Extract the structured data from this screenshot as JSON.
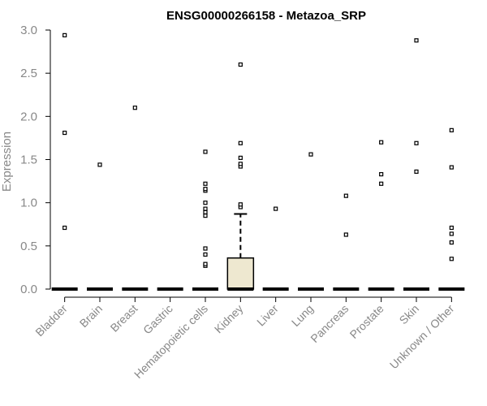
{
  "chart_data": {
    "type": "box",
    "title": "ENSG00000266158 - Metazoa_SRP",
    "xlabel": "",
    "ylabel": "Expression",
    "ylim": [
      0,
      3.0
    ],
    "yticks": [
      "0.0",
      "0.5",
      "1.0",
      "1.5",
      "2.0",
      "2.5",
      "3.0"
    ],
    "box_fill": "#EEE8D0",
    "categories": [
      "Bladder",
      "Brain",
      "Breast",
      "Gastric",
      "Hematopoietic cells",
      "Kidney",
      "Liver",
      "Lung",
      "Pancreas",
      "Prostate",
      "Skin",
      "Unknown / Other"
    ],
    "boxes": [
      {
        "q1": 0,
        "median": 0,
        "q3": 0,
        "whisker_low": 0,
        "whisker_high": 0,
        "outliers": [
          0.71,
          1.81,
          2.94
        ]
      },
      {
        "q1": 0,
        "median": 0,
        "q3": 0,
        "whisker_low": 0,
        "whisker_high": 0,
        "outliers": [
          1.44
        ]
      },
      {
        "q1": 0,
        "median": 0,
        "q3": 0,
        "whisker_low": 0,
        "whisker_high": 0,
        "outliers": [
          2.1
        ]
      },
      {
        "q1": 0,
        "median": 0,
        "q3": 0,
        "whisker_low": 0,
        "whisker_high": 0,
        "outliers": []
      },
      {
        "q1": 0,
        "median": 0,
        "q3": 0,
        "whisker_low": 0,
        "whisker_high": 0,
        "outliers": [
          0.27,
          0.29,
          0.4,
          0.47,
          0.85,
          0.89,
          0.93,
          1.0,
          1.14,
          1.16,
          1.22,
          1.59
        ]
      },
      {
        "q1": 0,
        "median": 0,
        "q3": 0.36,
        "whisker_low": 0,
        "whisker_high": 0.87,
        "outliers": [
          0.95,
          0.98,
          1.42,
          1.45,
          1.52,
          1.69,
          2.6
        ]
      },
      {
        "q1": 0,
        "median": 0,
        "q3": 0,
        "whisker_low": 0,
        "whisker_high": 0,
        "outliers": [
          0.93
        ]
      },
      {
        "q1": 0,
        "median": 0,
        "q3": 0,
        "whisker_low": 0,
        "whisker_high": 0,
        "outliers": [
          1.56
        ]
      },
      {
        "q1": 0,
        "median": 0,
        "q3": 0,
        "whisker_low": 0,
        "whisker_high": 0,
        "outliers": [
          0.63,
          1.08
        ]
      },
      {
        "q1": 0,
        "median": 0,
        "q3": 0,
        "whisker_low": 0,
        "whisker_high": 0,
        "outliers": [
          1.22,
          1.33,
          1.7
        ]
      },
      {
        "q1": 0,
        "median": 0,
        "q3": 0,
        "whisker_low": 0,
        "whisker_high": 0,
        "outliers": [
          1.36,
          1.69,
          2.88
        ]
      },
      {
        "q1": 0,
        "median": 0,
        "q3": 0,
        "whisker_low": 0,
        "whisker_high": 0,
        "outliers": [
          0.35,
          0.54,
          0.64,
          0.71,
          1.41,
          1.84
        ]
      }
    ]
  }
}
